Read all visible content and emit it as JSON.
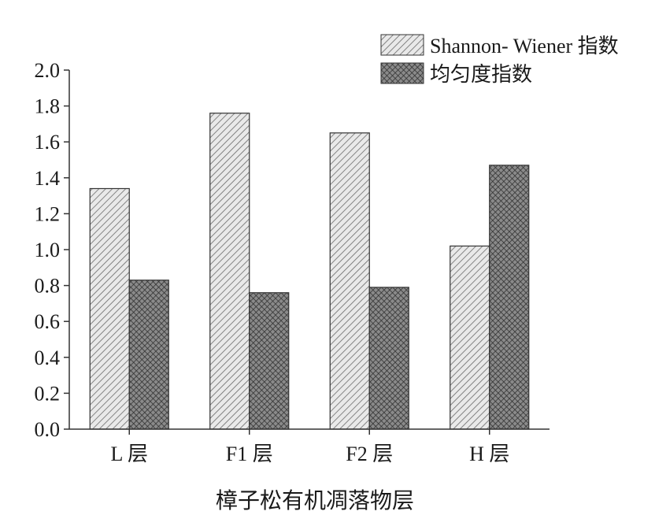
{
  "chart_data": {
    "type": "bar",
    "xlabel": "樟子松有机凋落物层",
    "ylabel": "",
    "categories": [
      "L 层",
      "F1 层",
      "F2 层",
      "H 层"
    ],
    "series": [
      {
        "name": "Shannon- Wiener 指数",
        "values": [
          1.34,
          1.76,
          1.65,
          1.02
        ],
        "pattern": "diagonal-hatch"
      },
      {
        "name": "均匀度指数",
        "values": [
          0.83,
          0.76,
          0.79,
          1.47
        ],
        "pattern": "crosshatch"
      }
    ],
    "ylim": [
      0,
      2.0
    ],
    "yticks": [
      "0.0",
      "0.2",
      "0.4",
      "0.6",
      "0.8",
      "1.0",
      "1.2",
      "1.4",
      "1.6",
      "1.8",
      "2.0"
    ],
    "grid": false,
    "legend_position": "top-right"
  }
}
